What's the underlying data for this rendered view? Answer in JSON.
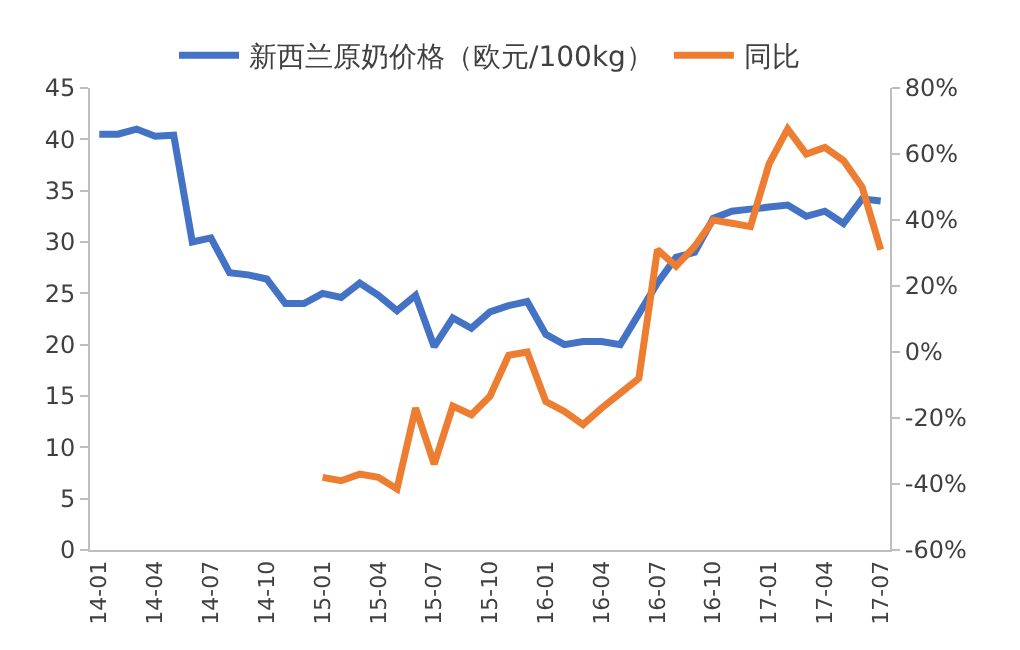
{
  "chart_data": {
    "type": "line",
    "categories": [
      "14-01",
      null,
      null,
      "14-04",
      null,
      null,
      "14-07",
      null,
      null,
      "14-10",
      null,
      null,
      "15-01",
      null,
      null,
      "15-04",
      null,
      null,
      "15-07",
      null,
      null,
      "15-10",
      null,
      null,
      "16-01",
      null,
      null,
      "16-04",
      null,
      null,
      "16-07",
      null,
      null,
      "16-10",
      null,
      null,
      "17-01",
      null,
      null,
      "17-04",
      null,
      null,
      "17-07"
    ],
    "series": [
      {
        "name": "新西兰原奶价格（欧元/100kg）",
        "color": "#4472c4",
        "values": [
          40.5,
          40.5,
          41,
          40.3,
          40.4,
          30,
          30.4,
          27,
          26.8,
          26.4,
          24,
          24,
          25,
          24.6,
          26,
          24.8,
          23.3,
          24.8,
          19.8,
          22.6,
          21.6,
          23.2,
          23.8,
          24.2,
          21,
          20,
          20.3,
          20.3,
          20,
          23,
          26,
          28.5,
          29,
          32.3,
          33,
          33.2,
          33.4,
          33.6,
          32.5,
          33,
          31.8,
          34.2,
          34
        ]
      },
      {
        "name": "同比",
        "color": "#ed7d31",
        "axis": "y2",
        "values": [
          null,
          null,
          null,
          null,
          null,
          null,
          null,
          null,
          null,
          null,
          null,
          null,
          -38,
          -39,
          -37,
          -38,
          -41.5,
          -17,
          -34,
          -16.4,
          -19,
          -13.4,
          -1,
          0,
          -15,
          -18,
          -22,
          -17,
          -12.5,
          -8,
          31,
          26,
          32,
          40,
          39,
          38,
          57,
          67.6,
          60,
          62,
          58,
          50,
          31
        ]
      }
    ],
    "ylim": [
      0,
      45
    ],
    "yticks": [
      0,
      5,
      10,
      15,
      20,
      25,
      30,
      35,
      40,
      45
    ],
    "y2lim": [
      -60,
      80
    ],
    "y2ticks": [
      {
        "value": -60,
        "label": "-60%"
      },
      {
        "value": -40,
        "label": "-40%"
      },
      {
        "value": -20,
        "label": "-20%"
      },
      {
        "value": 0,
        "label": "0%"
      },
      {
        "value": 20,
        "label": "20%"
      },
      {
        "value": 40,
        "label": "40%"
      },
      {
        "value": 60,
        "label": "60%"
      },
      {
        "value": 80,
        "label": "80%"
      }
    ],
    "legend": "top",
    "marker": "none",
    "line_style": "solid"
  }
}
